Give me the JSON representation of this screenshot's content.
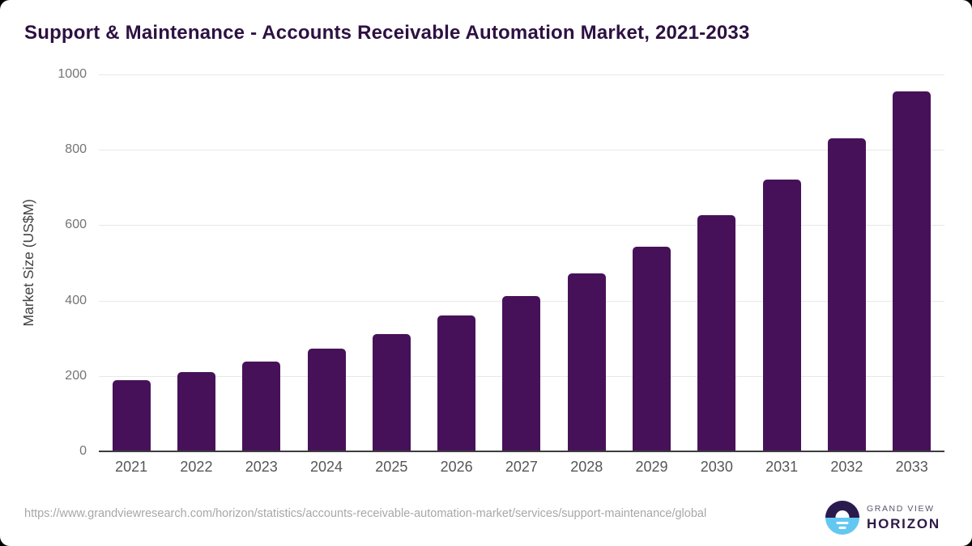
{
  "title": "Support & Maintenance - Accounts Receivable Automation Market, 2021-2033",
  "chart_data": {
    "type": "bar",
    "title": "Support & Maintenance - Accounts Receivable Automation Market, 2021-2033",
    "categories": [
      "2021",
      "2022",
      "2023",
      "2024",
      "2025",
      "2026",
      "2027",
      "2028",
      "2029",
      "2030",
      "2031",
      "2032",
      "2033"
    ],
    "values": [
      188,
      211,
      239,
      273,
      312,
      360,
      411,
      472,
      542,
      627,
      722,
      830,
      956
    ],
    "xlabel": "",
    "ylabel": "Market Size (US$M)",
    "ylim": [
      0,
      1000
    ],
    "yticks": [
      0,
      200,
      400,
      600,
      800,
      1000
    ],
    "grid": true,
    "legend_position": "none"
  },
  "colors": {
    "bar": "#471159",
    "title_text": "#2d1142",
    "logo_dark_purple": "#2b1b4d",
    "logo_sky_blue": "#63c8f1"
  },
  "footer": {
    "source_url": "https://www.grandviewresearch.com/horizon/statistics/accounts-receivable-automation-market/services/support-maintenance/global",
    "logo": {
      "top_text": "GRAND VIEW",
      "bottom_text": "HORIZON"
    }
  }
}
